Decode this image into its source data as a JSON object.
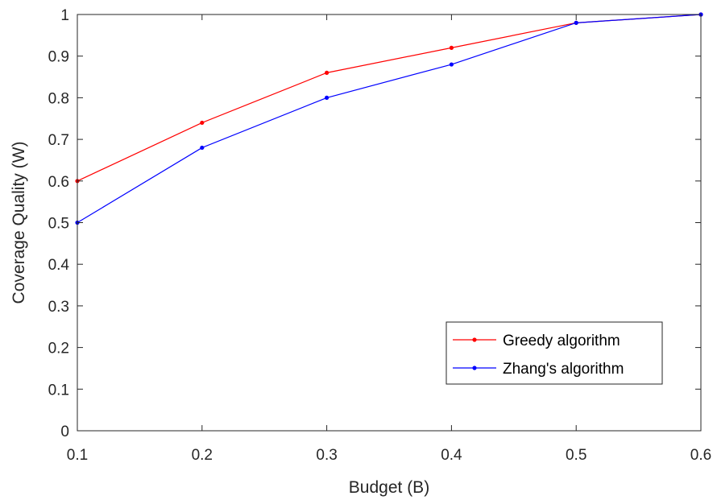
{
  "chart_data": {
    "type": "line",
    "title": "",
    "xlabel": "Budget (B)",
    "ylabel": "Coverage Quality (W)",
    "xlim": [
      0.1,
      0.6
    ],
    "ylim": [
      0,
      1
    ],
    "x": [
      0.1,
      0.2,
      0.3,
      0.4,
      0.5,
      0.6
    ],
    "xticks": [
      "0.1",
      "0.2",
      "0.3",
      "0.4",
      "0.5",
      "0.6"
    ],
    "yticks": [
      "0",
      "0.1",
      "0.2",
      "0.3",
      "0.4",
      "0.5",
      "0.6",
      "0.7",
      "0.8",
      "0.9",
      "1"
    ],
    "grid": false,
    "legend_position": "bottom-right",
    "series": [
      {
        "name": "Greedy algorithm",
        "color": "#ff0000",
        "marker": "dot",
        "values": [
          0.6,
          0.74,
          0.86,
          0.92,
          0.98,
          1.0
        ]
      },
      {
        "name": "Zhang's algorithm",
        "color": "#0000ff",
        "marker": "dot",
        "values": [
          0.5,
          0.68,
          0.8,
          0.88,
          0.98,
          1.0
        ]
      }
    ]
  }
}
